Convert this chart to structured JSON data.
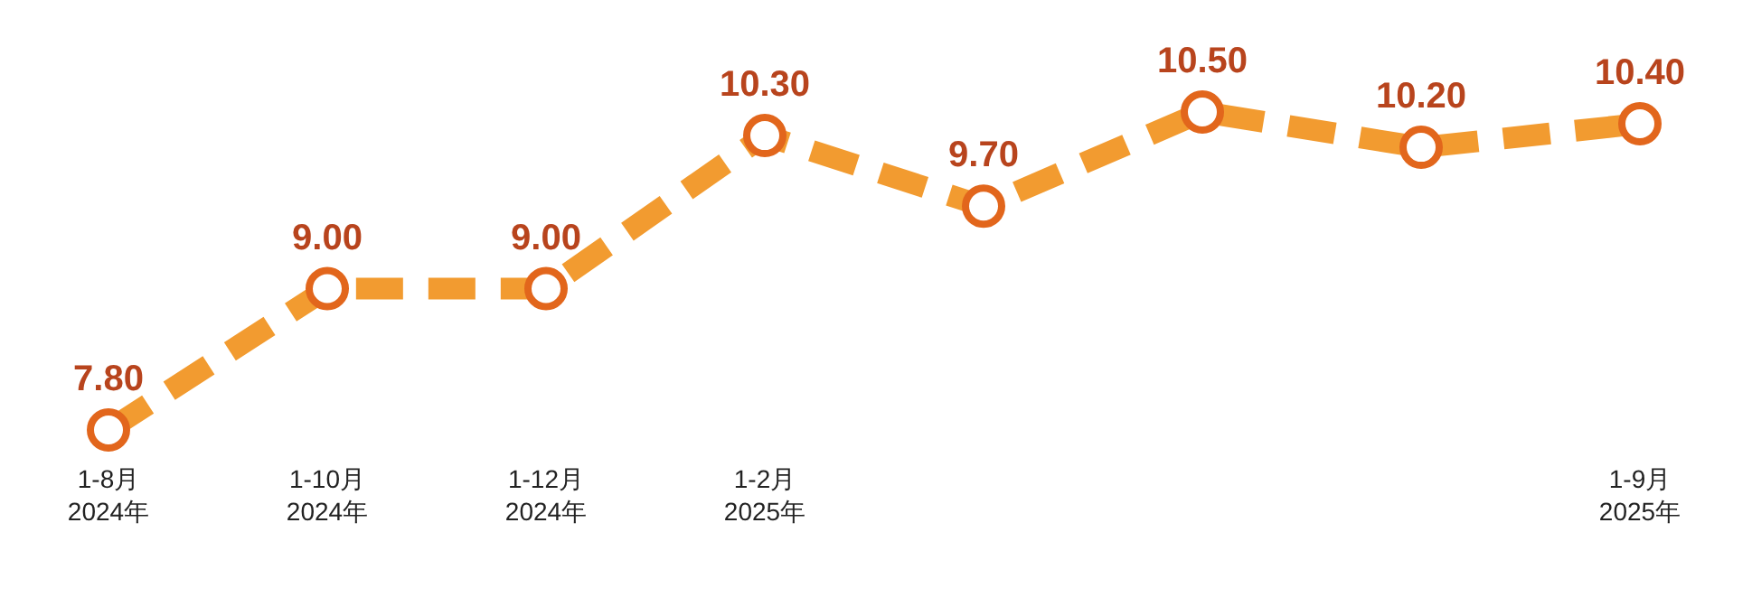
{
  "chart_data": {
    "type": "line",
    "categories": [
      "1-8月\n2024年",
      "1-10月\n2024年",
      "1-12月\n2024年",
      "1-2月\n2025年",
      null,
      null,
      null,
      "1-9月\n2025年"
    ],
    "series": [
      {
        "color": "#f29b30",
        "values": [
          7.8,
          9.0,
          9.0,
          10.3,
          9.7,
          10.5,
          10.2,
          10.4
        ],
        "value_labels": [
          "7.80",
          "9.00",
          "9.00",
          "10.30",
          "9.70",
          "10.50",
          "10.20",
          "10.40"
        ]
      }
    ],
    "marker": "circle",
    "line_style": "dashed"
  }
}
